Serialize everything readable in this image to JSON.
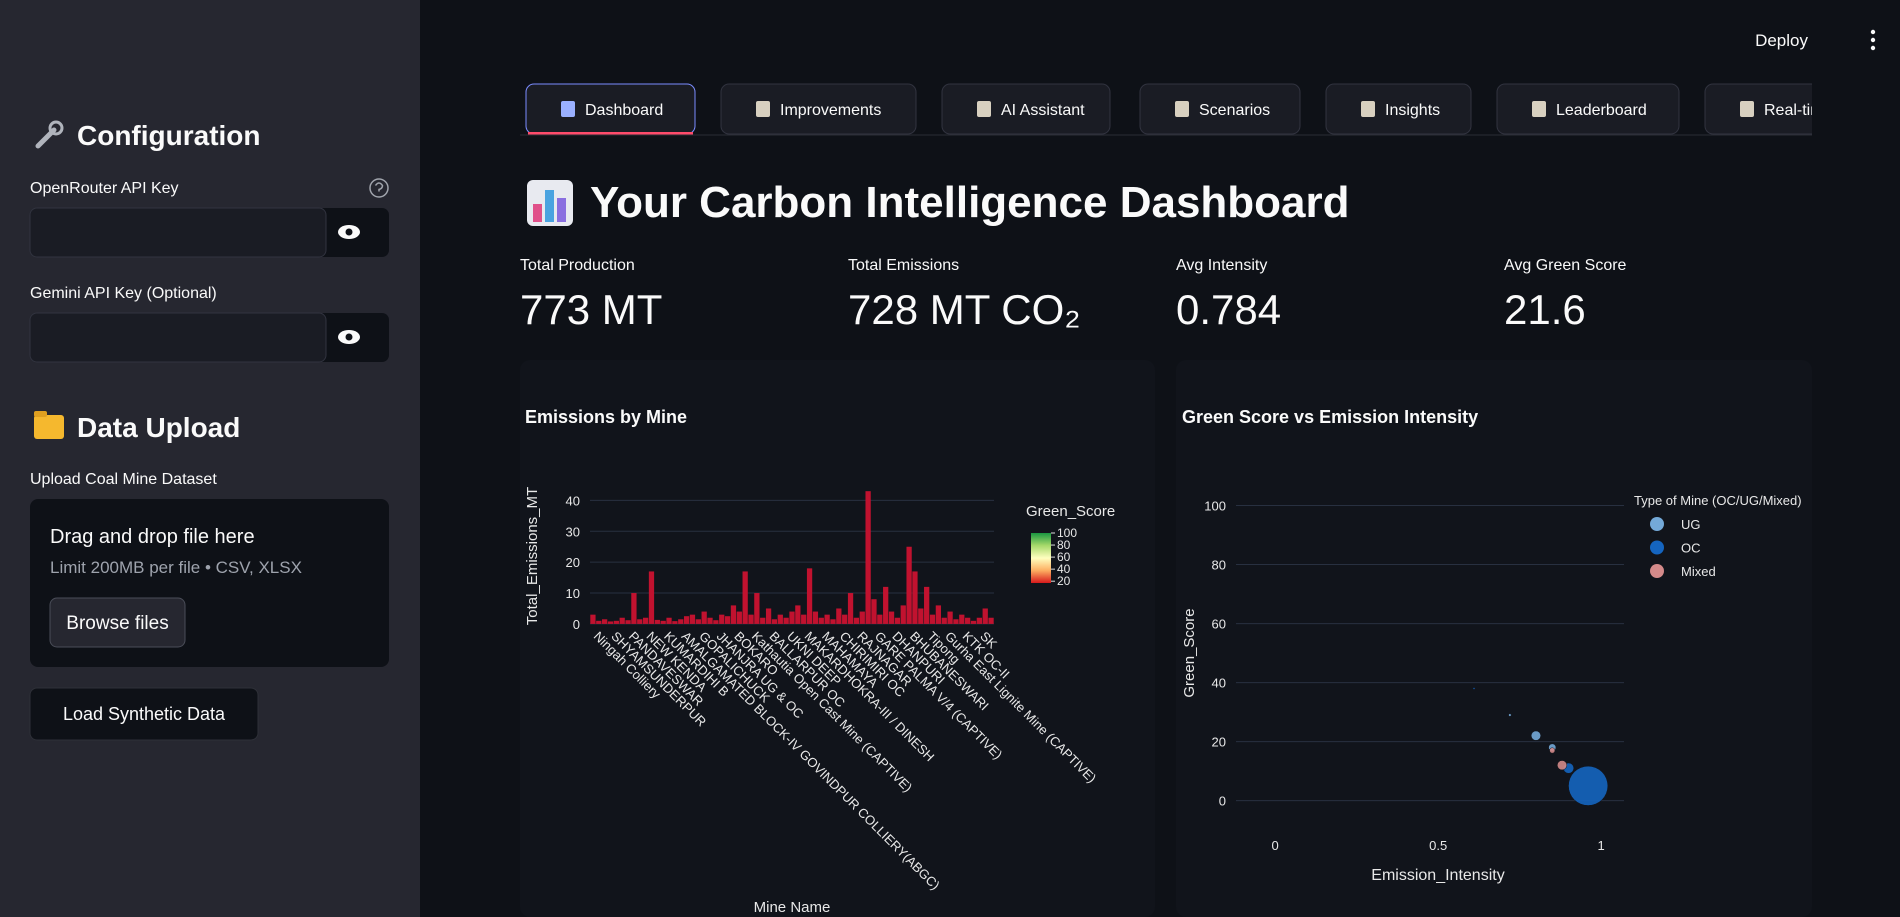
{
  "header": {
    "deploy": "Deploy"
  },
  "sidebar": {
    "config_title": "Configuration",
    "openrouter_label": "OpenRouter API Key",
    "gemini_label": "Gemini API Key (Optional)",
    "upload_title": "Data Upload",
    "upload_label": "Upload Coal Mine Dataset",
    "dropzone_title": "Drag and drop file here",
    "dropzone_hint": "Limit 200MB per file • CSV, XLSX",
    "browse_button": "Browse files",
    "load_button": "Load Synthetic Data"
  },
  "tabs": [
    "Dashboard",
    "Improvements",
    "AI Assistant",
    "Scenarios",
    "Insights",
    "Leaderboard",
    "Real-time"
  ],
  "main": {
    "title": "Your Carbon Intelligence Dashboard"
  },
  "metrics": [
    {
      "label": "Total Production",
      "value": "773 MT"
    },
    {
      "label": "Total Emissions",
      "value": "728 MT CO₂"
    },
    {
      "label": "Avg Intensity",
      "value": "0.784"
    },
    {
      "label": "Avg Green Score",
      "value": "21.6"
    }
  ],
  "chart_data": [
    {
      "type": "bar",
      "title": "Emissions by Mine",
      "x_label": "Mine Name",
      "y_label": "Total_Emissions_MT",
      "color": "#c1122f",
      "categories": [
        "Ningah Colliery",
        null,
        null,
        "SHYAMSUNDERPUR",
        null,
        null,
        "PANDAVESWAR",
        null,
        null,
        "NEW KENDA",
        null,
        null,
        "KUMARDIHI B",
        null,
        null,
        "AMALGAMATED BLOCK-IV GOVINDPUR COLLIERY(ABGC)",
        null,
        null,
        "GOPALICHUCK",
        null,
        null,
        "JHANJRA UG & OC",
        null,
        null,
        "BOKARO",
        null,
        null,
        "Kathautia Open Cast Mine (CAPTIVE)",
        null,
        null,
        "BALLARPUR OC",
        null,
        null,
        "UKNI DEEP",
        null,
        null,
        "MAKARDHOKRA-III / DINESH",
        null,
        null,
        "MAHAMAYA",
        null,
        null,
        "CHIRIMIRI OC",
        null,
        null,
        "RAJNAGAR",
        null,
        null,
        "GARE PALMA V/4 (CAPTIVE)",
        null,
        null,
        "DHANPURI",
        null,
        null,
        "BHUBANESWARI",
        null,
        null,
        "Tipong",
        null,
        null,
        "Gurha East Lignite Mine (CAPTIVE)",
        null,
        null,
        "KTK OC-II",
        null,
        null,
        "SK",
        null,
        null
      ],
      "values": [
        3,
        1,
        1.5,
        0.8,
        1,
        2,
        1.2,
        10,
        1.5,
        2,
        17,
        1.3,
        1,
        2,
        0.9,
        1.5,
        2.5,
        3,
        1.5,
        4,
        2,
        1.2,
        3,
        2.5,
        6,
        4,
        17,
        3,
        10,
        2,
        5,
        1.5,
        3,
        2,
        4,
        6,
        3,
        18,
        4,
        2,
        3,
        1.5,
        5,
        3,
        10,
        2,
        4,
        43,
        8,
        3,
        12,
        4,
        2,
        6,
        25,
        17,
        5,
        12,
        3,
        6,
        2,
        4,
        1.5,
        3,
        2,
        1,
        2,
        5,
        2
      ],
      "ylim": [
        -1,
        45
      ],
      "yticks": [
        0,
        10,
        20,
        30,
        40
      ],
      "grid": true,
      "colorbar": {
        "title": "Green_Score",
        "range": [
          17,
          100
        ],
        "ticks": [
          20,
          40,
          60,
          80,
          100
        ],
        "colors": [
          "#d7191c",
          "#fdae61",
          "#ffffbf",
          "#a6d96a",
          "#1a9641"
        ]
      }
    },
    {
      "type": "scatter",
      "title": "Green Score vs Emission Intensity",
      "x_label": "Emission_Intensity",
      "y_label": "Green_Score",
      "legend_title": "Type of Mine (OC/UG/Mixed)",
      "legend": "top-right",
      "xlim": [
        -0.12,
        1.07
      ],
      "ylim": [
        -12,
        109
      ],
      "xticks": [
        0,
        0.5,
        1
      ],
      "yticks": [
        0,
        20,
        40,
        60,
        80,
        100
      ],
      "grid": true,
      "series": [
        {
          "name": "UG",
          "color": "#74a9d8",
          "x": [
            0.72,
            0.8,
            0.85
          ],
          "y": [
            29,
            22,
            18
          ],
          "sizes": [
            0.2,
            2.5,
            1.5
          ]
        },
        {
          "name": "OC",
          "color": "#1565c0",
          "x": [
            0.61,
            0.9,
            0.96
          ],
          "y": [
            38,
            11,
            5
          ],
          "sizes": [
            0.1,
            3,
            43
          ]
        },
        {
          "name": "Mixed",
          "color": "#d48a8a",
          "x": [
            0.88,
            0.85
          ],
          "y": [
            12,
            17
          ],
          "sizes": [
            2.5,
            0.8
          ]
        }
      ]
    }
  ]
}
